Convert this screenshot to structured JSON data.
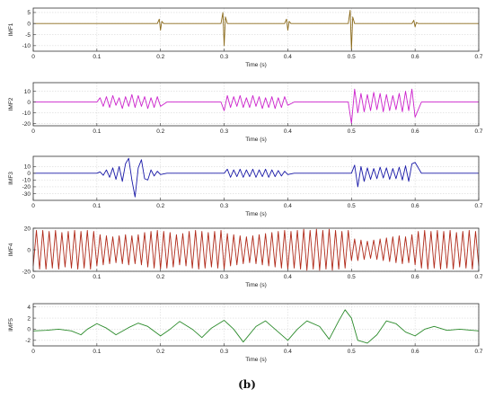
{
  "figure": {
    "caption": "(b)"
  },
  "chart_data": [
    {
      "type": "line",
      "ylabel": "IMF1",
      "xlabel": "Time (s)",
      "xlim": [
        0,
        0.7
      ],
      "ylim": [
        -12.5,
        7
      ],
      "yticks": [
        5,
        0,
        -5,
        -10
      ],
      "xticks": [
        0,
        0.1,
        0.2,
        0.3,
        0.4,
        0.5,
        0.6,
        0.7
      ],
      "grid": true,
      "series": [
        {
          "color": "#8b6a1a",
          "x": [
            0,
            0.195,
            0.198,
            0.2,
            0.202,
            0.205,
            0.295,
            0.298,
            0.3,
            0.302,
            0.305,
            0.395,
            0.398,
            0.4,
            0.402,
            0.405,
            0.495,
            0.498,
            0.5,
            0.502,
            0.505,
            0.595,
            0.598,
            0.6,
            0.602,
            0.605,
            0.7
          ],
          "y": [
            0,
            0,
            2,
            -3,
            1,
            0,
            0,
            5,
            -10,
            3,
            0,
            0,
            2,
            -3,
            1,
            0,
            0,
            6,
            -12,
            3,
            0,
            0,
            1.5,
            -1.5,
            0.5,
            0,
            0
          ]
        }
      ]
    },
    {
      "type": "line",
      "ylabel": "IMF2",
      "xlabel": "Time (s)",
      "xlim": [
        0,
        0.7
      ],
      "ylim": [
        -22,
        18
      ],
      "yticks": [
        10,
        0,
        -10,
        -20
      ],
      "xticks": [
        0,
        0.1,
        0.2,
        0.3,
        0.4,
        0.5,
        0.6,
        0.7
      ],
      "grid": true,
      "series": [
        {
          "color": "#cc22cc",
          "x": [
            0,
            0.1,
            0.105,
            0.11,
            0.115,
            0.12,
            0.125,
            0.13,
            0.135,
            0.14,
            0.145,
            0.15,
            0.155,
            0.16,
            0.165,
            0.17,
            0.175,
            0.18,
            0.185,
            0.19,
            0.195,
            0.2,
            0.21,
            0.295,
            0.3,
            0.305,
            0.31,
            0.315,
            0.32,
            0.325,
            0.33,
            0.335,
            0.34,
            0.345,
            0.35,
            0.355,
            0.36,
            0.365,
            0.37,
            0.375,
            0.38,
            0.385,
            0.39,
            0.395,
            0.4,
            0.41,
            0.495,
            0.5,
            0.505,
            0.51,
            0.515,
            0.52,
            0.525,
            0.53,
            0.535,
            0.54,
            0.545,
            0.55,
            0.555,
            0.56,
            0.565,
            0.57,
            0.575,
            0.58,
            0.585,
            0.59,
            0.595,
            0.6,
            0.61,
            0.7
          ],
          "y": [
            0,
            0,
            4,
            -4,
            5,
            -5,
            6,
            -3,
            4,
            -6,
            5,
            -4,
            7,
            -5,
            6,
            -4,
            5,
            -6,
            4,
            -5,
            5,
            -4,
            0,
            0,
            -8,
            6,
            -5,
            5,
            -4,
            6,
            -5,
            4,
            -5,
            6,
            -4,
            5,
            -6,
            4,
            -5,
            5,
            -6,
            4,
            -5,
            5,
            -3,
            0,
            0,
            -20,
            12,
            -10,
            8,
            -9,
            7,
            -8,
            9,
            -7,
            8,
            -9,
            7,
            -8,
            6,
            -7,
            8,
            -9,
            10,
            -8,
            12,
            -14,
            0,
            0
          ]
        }
      ]
    },
    {
      "type": "line",
      "ylabel": "IMF3",
      "xlabel": "Time (s)",
      "xlim": [
        0,
        0.7
      ],
      "ylim": [
        -40,
        25
      ],
      "yticks": [
        10,
        0,
        -10,
        -20,
        -30
      ],
      "xticks": [
        0,
        0.1,
        0.2,
        0.3,
        0.4,
        0.5,
        0.6,
        0.7
      ],
      "grid": true,
      "series": [
        {
          "color": "#1a1aa8",
          "x": [
            0,
            0.1,
            0.105,
            0.11,
            0.115,
            0.12,
            0.125,
            0.13,
            0.135,
            0.14,
            0.145,
            0.15,
            0.155,
            0.16,
            0.165,
            0.17,
            0.175,
            0.18,
            0.185,
            0.19,
            0.195,
            0.2,
            0.21,
            0.3,
            0.305,
            0.31,
            0.315,
            0.32,
            0.325,
            0.33,
            0.335,
            0.34,
            0.345,
            0.35,
            0.355,
            0.36,
            0.365,
            0.37,
            0.375,
            0.38,
            0.385,
            0.39,
            0.395,
            0.4,
            0.41,
            0.5,
            0.505,
            0.51,
            0.515,
            0.52,
            0.525,
            0.53,
            0.535,
            0.54,
            0.545,
            0.55,
            0.555,
            0.56,
            0.565,
            0.57,
            0.575,
            0.58,
            0.585,
            0.59,
            0.595,
            0.6,
            0.61,
            0.7
          ],
          "y": [
            0,
            0,
            2,
            -3,
            5,
            -6,
            8,
            -9,
            10,
            -12,
            14,
            22,
            -10,
            -35,
            8,
            20,
            -8,
            -10,
            5,
            -4,
            3,
            -2,
            0,
            0,
            6,
            -6,
            5,
            -5,
            6,
            -6,
            5,
            -5,
            6,
            -6,
            5,
            -5,
            6,
            -6,
            5,
            -5,
            4,
            -4,
            3,
            -2,
            0,
            0,
            12,
            -20,
            10,
            -12,
            8,
            -9,
            7,
            -8,
            9,
            -7,
            8,
            -9,
            7,
            -8,
            9,
            -10,
            11,
            -12,
            14,
            16,
            0,
            0
          ]
        }
      ]
    },
    {
      "type": "line",
      "ylabel": "IMF4",
      "xlabel": "Time (s)",
      "xlim": [
        0,
        0.7
      ],
      "ylim": [
        -20,
        20
      ],
      "yticks": [
        20,
        0,
        -20
      ],
      "xticks": [
        0,
        0.1,
        0.2,
        0.3,
        0.4,
        0.5,
        0.6,
        0.7
      ],
      "grid": true,
      "series": [
        {
          "color": "#b02a1a",
          "x": [
            0,
            0.005,
            0.01,
            0.015,
            0.02,
            0.025,
            0.03,
            0.035,
            0.04,
            0.045,
            0.05,
            0.055,
            0.06,
            0.065,
            0.07,
            0.075,
            0.08,
            0.085,
            0.09,
            0.095,
            0.1,
            0.105,
            0.11,
            0.115,
            0.12,
            0.125,
            0.13,
            0.135,
            0.14,
            0.145,
            0.15,
            0.155,
            0.16,
            0.165,
            0.17,
            0.175,
            0.18,
            0.185,
            0.19,
            0.195,
            0.2,
            0.205,
            0.21,
            0.215,
            0.22,
            0.225,
            0.23,
            0.235,
            0.24,
            0.245,
            0.25,
            0.255,
            0.26,
            0.265,
            0.27,
            0.275,
            0.28,
            0.285,
            0.29,
            0.295,
            0.3,
            0.305,
            0.31,
            0.315,
            0.32,
            0.325,
            0.33,
            0.335,
            0.34,
            0.345,
            0.35,
            0.355,
            0.36,
            0.365,
            0.37,
            0.375,
            0.38,
            0.385,
            0.39,
            0.395,
            0.4,
            0.405,
            0.41,
            0.415,
            0.42,
            0.425,
            0.43,
            0.435,
            0.44,
            0.445,
            0.45,
            0.455,
            0.46,
            0.465,
            0.47,
            0.475,
            0.48,
            0.485,
            0.49,
            0.495,
            0.5,
            0.505,
            0.51,
            0.515,
            0.52,
            0.525,
            0.53,
            0.535,
            0.54,
            0.545,
            0.55,
            0.555,
            0.56,
            0.565,
            0.57,
            0.575,
            0.58,
            0.585,
            0.59,
            0.595,
            0.6,
            0.605,
            0.61,
            0.615,
            0.62,
            0.625,
            0.63,
            0.635,
            0.64,
            0.645,
            0.65,
            0.655,
            0.66,
            0.665,
            0.67,
            0.675,
            0.68,
            0.685,
            0.69,
            0.695,
            0.7
          ],
          "y": [
            -15,
            18,
            -18,
            18,
            -18,
            17,
            -17,
            18,
            -18,
            16,
            -16,
            17,
            -17,
            18,
            -18,
            17,
            -17,
            18,
            -18,
            17,
            -15,
            14,
            -14,
            13,
            -13,
            12,
            -12,
            13,
            -13,
            14,
            -14,
            13,
            -13,
            14,
            -14,
            16,
            -16,
            17,
            -17,
            18,
            -18,
            17,
            -17,
            16,
            -16,
            14,
            -14,
            15,
            -15,
            17,
            -17,
            18,
            -18,
            17,
            -17,
            16,
            -16,
            17,
            -17,
            18,
            -18,
            15,
            -15,
            14,
            -14,
            13,
            -13,
            12,
            -12,
            13,
            -13,
            14,
            -14,
            15,
            -15,
            16,
            -16,
            17,
            -17,
            18,
            -18,
            17,
            -17,
            18,
            -18,
            19,
            -19,
            18,
            -18,
            19,
            -19,
            18,
            -18,
            19,
            -19,
            18,
            -18,
            17,
            -17,
            18,
            -10,
            10,
            -10,
            9,
            -9,
            8,
            -8,
            9,
            -9,
            10,
            -10,
            11,
            -11,
            12,
            -12,
            13,
            -13,
            12,
            -12,
            14,
            -14,
            17,
            -17,
            18,
            -18,
            17,
            -17,
            18,
            -18,
            17,
            -17,
            18,
            -18,
            16,
            -16,
            17,
            -17,
            18,
            -18,
            17,
            -15
          ]
        }
      ]
    },
    {
      "type": "line",
      "ylabel": "IMF5",
      "xlabel": "Time (s)",
      "xlim": [
        0,
        0.7
      ],
      "ylim": [
        -3,
        4.6
      ],
      "yticks": [
        4,
        2,
        0,
        -2
      ],
      "xticks": [
        0,
        0.1,
        0.2,
        0.3,
        0.4,
        0.5,
        0.6,
        0.7
      ],
      "grid": true,
      "series": [
        {
          "color": "#2a8a2a",
          "x": [
            0,
            0.02,
            0.04,
            0.06,
            0.075,
            0.085,
            0.1,
            0.115,
            0.13,
            0.15,
            0.165,
            0.18,
            0.2,
            0.215,
            0.23,
            0.25,
            0.265,
            0.28,
            0.3,
            0.315,
            0.33,
            0.35,
            0.365,
            0.38,
            0.4,
            0.415,
            0.43,
            0.45,
            0.465,
            0.48,
            0.49,
            0.5,
            0.51,
            0.525,
            0.54,
            0.555,
            0.57,
            0.585,
            0.6,
            0.615,
            0.63,
            0.65,
            0.67,
            0.69,
            0.7
          ],
          "y": [
            -0.3,
            -0.2,
            0,
            -0.3,
            -1.0,
            0,
            1.0,
            0.2,
            -1.0,
            0.3,
            1.1,
            0.5,
            -1.2,
            0,
            1.4,
            0,
            -1.5,
            0.2,
            1.6,
            0,
            -2.3,
            0.5,
            1.5,
            0,
            -2.0,
            0,
            1.5,
            0.5,
            -1.8,
            1.5,
            3.5,
            2.0,
            -2.0,
            -2.5,
            -1.0,
            1.5,
            1.0,
            -0.5,
            -1.2,
            0,
            0.5,
            -0.2,
            0,
            -0.2,
            -0.3
          ]
        }
      ]
    }
  ]
}
